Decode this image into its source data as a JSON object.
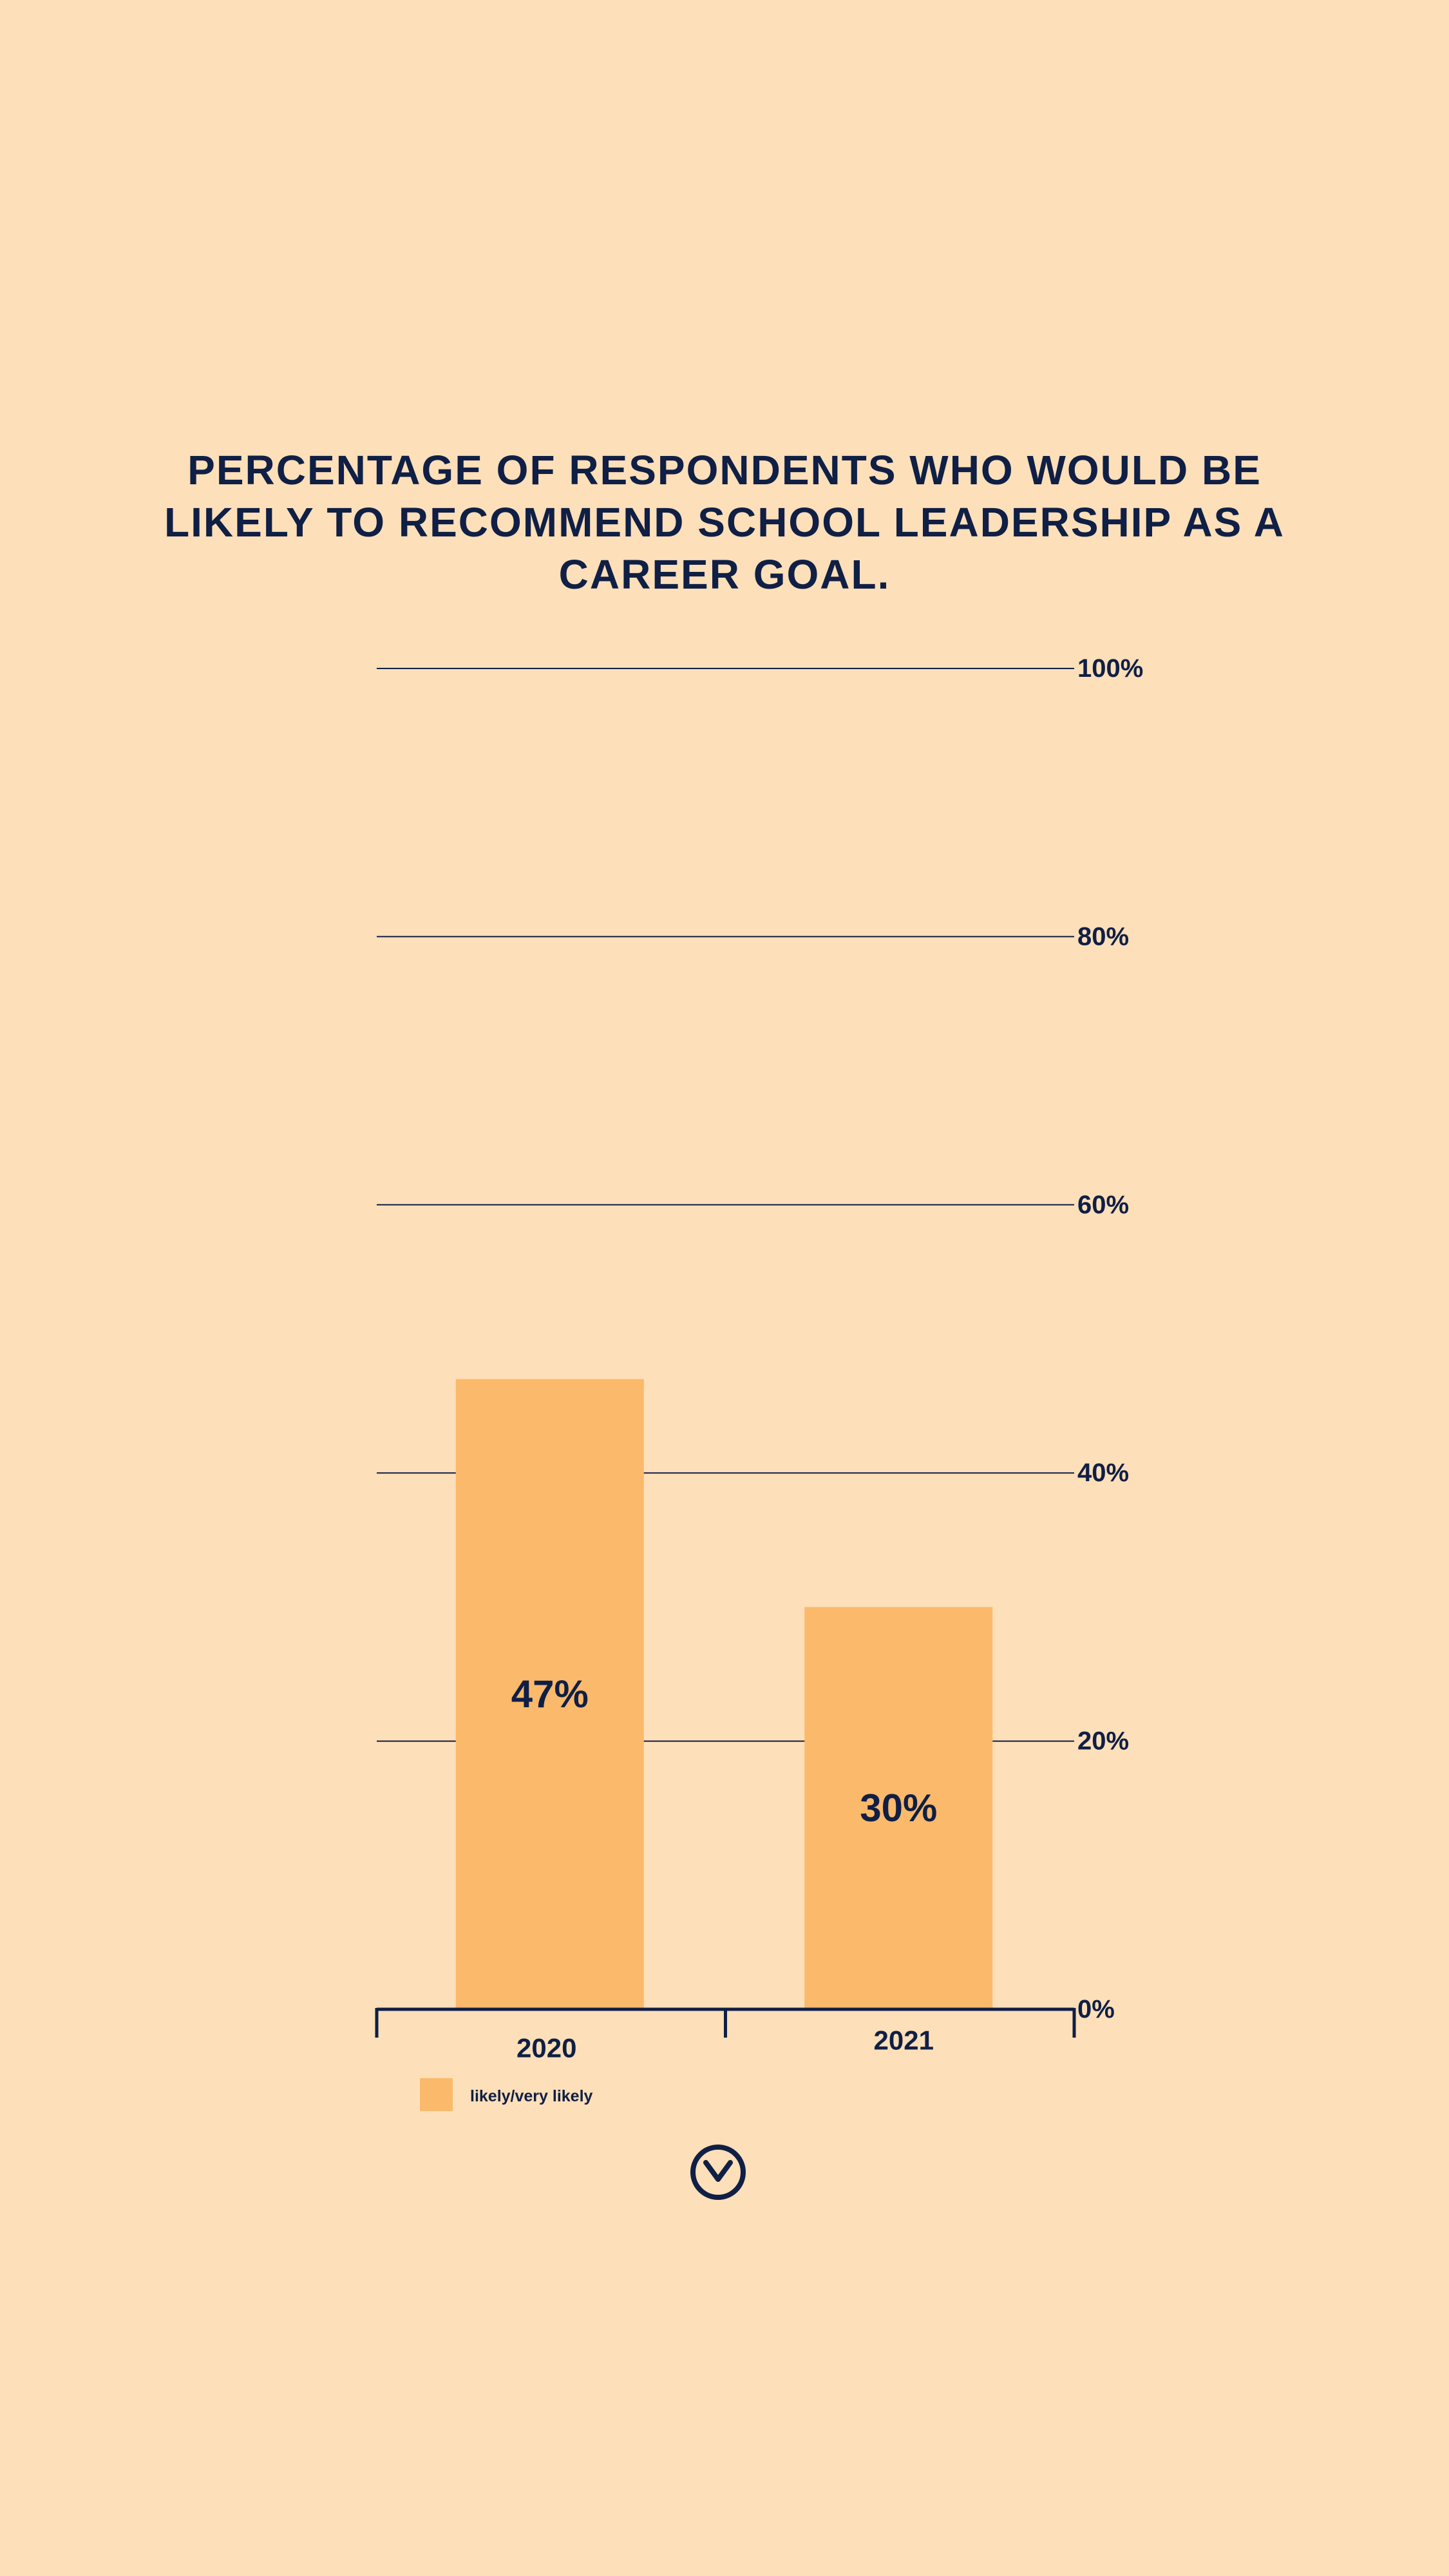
{
  "colors": {
    "background": "#fddfb9",
    "text": "#0f1f45",
    "bar": "#fbb96b",
    "grid": "#0f1f45"
  },
  "chart_data": {
    "type": "bar",
    "title": "PERCENTAGE OF RESPONDENTS WHO WOULD BE LIKELY TO RECOMMEND SCHOOL LEADERSHIP AS A CAREER GOAL.",
    "categories": [
      "2020",
      "2021"
    ],
    "series": [
      {
        "name": "likely/very likely",
        "values": [
          47,
          30
        ],
        "data_labels": [
          "47%",
          "30%"
        ]
      }
    ],
    "ylim": [
      0,
      100
    ],
    "yticks": [
      0,
      20,
      40,
      60,
      80,
      100
    ],
    "ytick_labels": [
      "0%",
      "20%",
      "40%",
      "60%",
      "80%",
      "100%"
    ],
    "y_axis_side": "right",
    "grid": true,
    "legend_position": "bottom-left"
  },
  "icons": {
    "scroll_down": "chevron-down-circle-icon"
  }
}
